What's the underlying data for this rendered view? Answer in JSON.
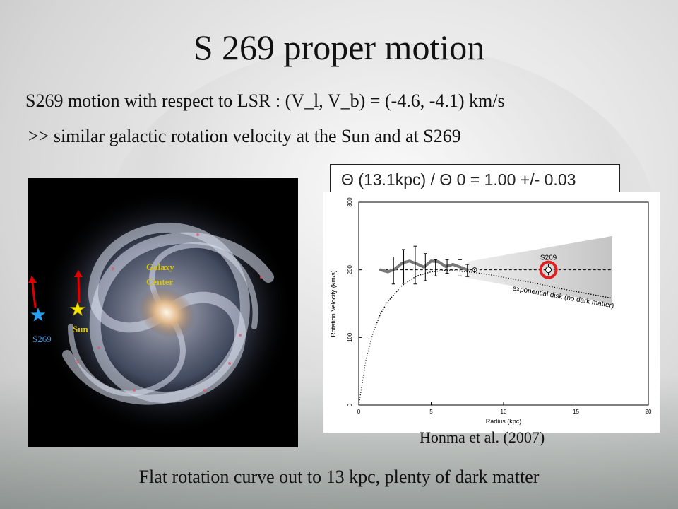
{
  "title": "S 269 proper motion",
  "line1": "S269 motion with respect to LSR : (V_l, V_b) = (-4.6, -4.1) km/s",
  "line2": ">> similar galactic rotation  velocity at the Sun and at S269",
  "formula": "Θ (13.1kpc) /  Θ 0 = 1.00 +/- 0.03",
  "galaxy": {
    "center_label": [
      "Galaxy",
      "Center"
    ],
    "sun_label": "Sun",
    "s269_label": "S269",
    "colors": {
      "sun": "#f5e400",
      "s269": "#2a9df4",
      "arrow": "#e00000",
      "label": "#d9c400"
    }
  },
  "citation": "Honma et al. (2007)",
  "bottom_text": "Flat rotation curve out to 13 kpc, plenty of dark matter",
  "chart_data": {
    "type": "line",
    "xlabel": "Radius (kpc)",
    "ylabel": "Rotation Velocity (km/s)",
    "xlim": [
      0,
      20
    ],
    "ylim": [
      0,
      300
    ],
    "xticks": [
      0,
      5,
      10,
      15,
      20
    ],
    "yticks": [
      0,
      100,
      200,
      300
    ],
    "flat_level": 200,
    "series": [
      {
        "style": "dotted",
        "x": [
          0,
          0.5,
          1,
          1.5,
          2,
          3,
          4,
          5,
          6,
          7,
          8,
          9,
          10,
          12,
          14,
          16,
          17.5
        ],
        "y": [
          0,
          68,
          108,
          135,
          153,
          177,
          191,
          197,
          199,
          198,
          196,
          193,
          189,
          181,
          172,
          164,
          158
        ]
      },
      {
        "style": "solid",
        "x": [
          1.5,
          2,
          2.5,
          3,
          3.5,
          4,
          4.5,
          5,
          5.5,
          6,
          6.5,
          7,
          7.5
        ],
        "y": [
          200,
          197,
          201,
          210,
          213,
          209,
          204,
          213,
          212,
          205,
          208,
          204,
          200
        ]
      }
    ],
    "error_points": [
      {
        "x": 2.4,
        "y": 199,
        "err": 20
      },
      {
        "x": 3.1,
        "y": 205,
        "err": 25
      },
      {
        "x": 3.9,
        "y": 207,
        "err": 28
      },
      {
        "x": 4.6,
        "y": 204,
        "err": 20
      },
      {
        "x": 5.3,
        "y": 203,
        "err": 12
      },
      {
        "x": 6.1,
        "y": 205,
        "err": 10
      },
      {
        "x": 7.0,
        "y": 203,
        "err": 12
      },
      {
        "x": 7.5,
        "y": 199,
        "err": 9
      }
    ],
    "sun_point": {
      "x": 8.0,
      "y": 200
    },
    "s269_point": {
      "x": 13.1,
      "y": 200,
      "err": 8,
      "label": "S269"
    },
    "annotation": "exponential disk (no dark matter)",
    "colors": {
      "highlight": "#e02020"
    }
  }
}
